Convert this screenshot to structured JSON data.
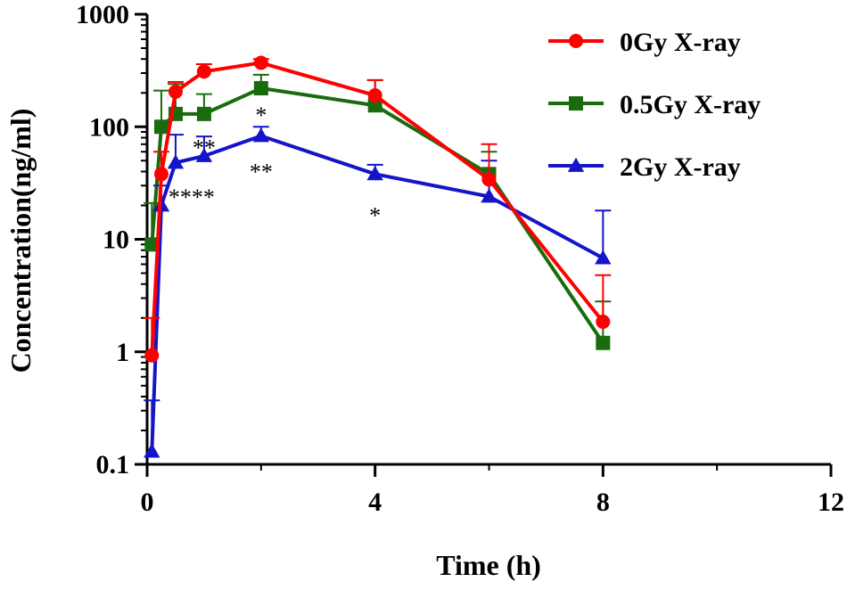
{
  "chart_data": {
    "type": "line",
    "title": "",
    "xlabel": "Time (h)",
    "ylabel": "Concentration(ng/ml)",
    "xlim": [
      0,
      12
    ],
    "ylim": [
      0.1,
      1000
    ],
    "yscale": "log",
    "xticks": [
      0,
      4,
      8,
      12
    ],
    "xtick_labels": [
      "0",
      "4",
      "8",
      "12"
    ],
    "yticks": [
      0.1,
      1,
      10,
      100,
      1000
    ],
    "ytick_labels": [
      "0.1",
      "1",
      "10",
      "100",
      "1000"
    ],
    "grid": false,
    "legend_position": "top-right",
    "series": [
      {
        "name": "0Gy X-ray",
        "color": "#ff0000",
        "marker": "circle",
        "x": [
          0.083,
          0.25,
          0.5,
          1,
          2,
          4,
          6,
          8
        ],
        "values": [
          0.93,
          38,
          205,
          310,
          370,
          190,
          34,
          1.85
        ],
        "err_upper": [
          2.0,
          60,
          250,
          360,
          400,
          260,
          70,
          4.8
        ]
      },
      {
        "name": "0.5Gy X-ray",
        "color": "#1a6b0d",
        "marker": "square",
        "x": [
          0.083,
          0.25,
          0.5,
          1,
          2,
          4,
          6,
          8
        ],
        "values": [
          9,
          100,
          130,
          130,
          220,
          155,
          38,
          1.2
        ],
        "err_upper": [
          21,
          210,
          240,
          195,
          290,
          260,
          60,
          2.8
        ]
      },
      {
        "name": "2Gy X-ray",
        "color": "#1414c8",
        "marker": "triangle",
        "x": [
          0.083,
          0.25,
          0.5,
          1,
          2,
          4,
          6,
          8
        ],
        "values": [
          0.13,
          20,
          48,
          55,
          83,
          38,
          24,
          6.8
        ],
        "err_upper": [
          0.37,
          30,
          85,
          82,
          100,
          46,
          50,
          18
        ]
      }
    ],
    "annotations": [
      {
        "text": "*",
        "x": 2,
        "y": 140
      },
      {
        "text": "**",
        "x": 1,
        "y": 72
      },
      {
        "text": "**",
        "x": 2,
        "y": 44
      },
      {
        "text": "****",
        "x": 0.78,
        "y": 26
      },
      {
        "text": "*",
        "x": 4,
        "y": 18
      }
    ]
  }
}
